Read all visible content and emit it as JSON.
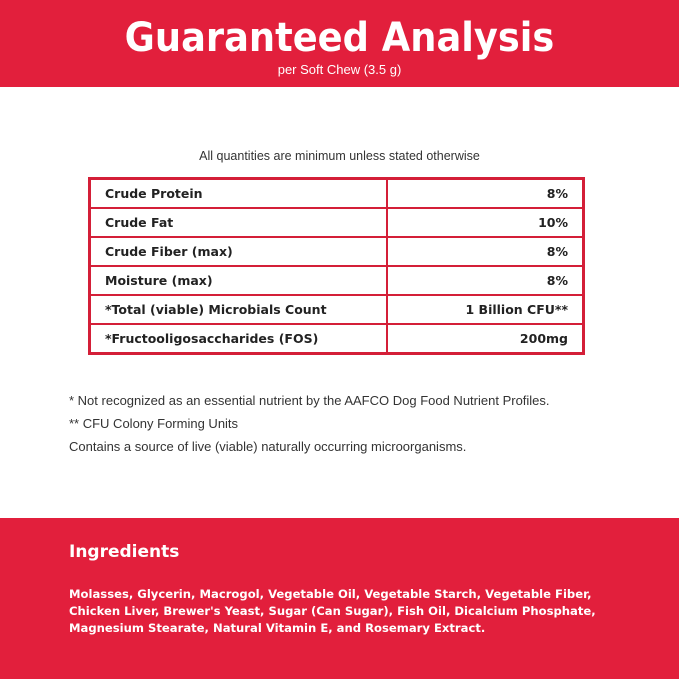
{
  "header": {
    "title": "Guaranteed Analysis",
    "subtitle": "per Soft Chew (3.5 g)"
  },
  "note": "All quantities are minimum unless stated otherwise",
  "table": {
    "rows": [
      [
        "Crude Protein",
        "8%"
      ],
      [
        "Crude Fat",
        "10%"
      ],
      [
        "Crude Fiber (max)",
        "8%"
      ],
      [
        "Moisture (max)",
        "8%"
      ],
      [
        "*Total (viable) Microbials Count",
        "1 Billion CFU**"
      ],
      [
        "*Fructooligosaccharides (FOS)",
        "200mg"
      ]
    ]
  },
  "footnotes": [
    "* Not recognized as an essential nutrient by the AAFCO Dog Food Nutrient Profiles.",
    "** CFU Colony Forming Units",
    "Contains a source of live (viable) naturally occurring microorganisms."
  ],
  "ingredients": {
    "title": "Ingredients",
    "text": "Molasses, Glycerin, Macrogol, Vegetable Oil, Vegetable Starch, Vegetable Fiber, Chicken Liver, Brewer's Yeast, Sugar (Can Sugar), Fish Oil, Dicalcium Phosphate, Magnesium Stearate, Natural Vitamin E, and Rosemary Extract."
  }
}
